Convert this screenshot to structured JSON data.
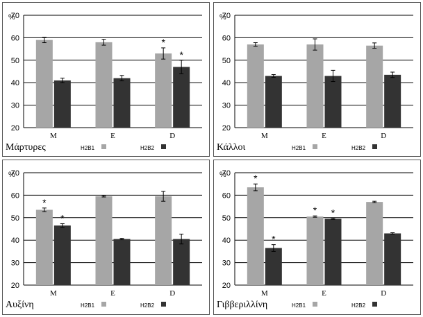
{
  "colors": {
    "h2b1": "#a6a6a6",
    "h2b2": "#333333",
    "grid": "#000000",
    "axis_text": "#000000"
  },
  "chart_data": [
    {
      "type": "bar",
      "title": "Μάρτυρες",
      "ylabel": "%",
      "categories": [
        "M",
        "E",
        "D"
      ],
      "ylim": [
        20,
        70
      ],
      "yticks": [
        "20",
        "30",
        "40",
        "50",
        "60",
        "70"
      ],
      "grid": true,
      "legend": "bottom",
      "series": [
        {
          "name": "H2B1",
          "values": [
            59,
            58,
            53
          ],
          "errors": [
            1.2,
            1.3,
            2.5
          ],
          "stars": [
            "",
            "",
            "*"
          ]
        },
        {
          "name": "H2B2",
          "values": [
            41,
            42,
            47
          ],
          "errors": [
            1.0,
            1.2,
            3.0
          ],
          "stars": [
            "",
            "",
            "*"
          ]
        }
      ]
    },
    {
      "type": "bar",
      "title": "Κάλλοι",
      "ylabel": "%",
      "categories": [
        "M",
        "E",
        "D"
      ],
      "ylim": [
        20,
        70
      ],
      "yticks": [
        "20",
        "30",
        "40",
        "50",
        "60",
        "70"
      ],
      "grid": true,
      "legend": "bottom",
      "series": [
        {
          "name": "H2B1",
          "values": [
            57,
            57,
            56.5
          ],
          "errors": [
            0.8,
            2.5,
            1.2
          ],
          "stars": [
            "",
            "",
            ""
          ]
        },
        {
          "name": "H2B2",
          "values": [
            43,
            43,
            43.5
          ],
          "errors": [
            0.6,
            2.5,
            1.2
          ],
          "stars": [
            "",
            "",
            ""
          ]
        }
      ]
    },
    {
      "type": "bar",
      "title": "Αυξίνη",
      "ylabel": "%",
      "categories": [
        "M",
        "E",
        "D"
      ],
      "ylim": [
        20,
        70
      ],
      "yticks": [
        "20",
        "30",
        "40",
        "50",
        "60",
        "70"
      ],
      "grid": true,
      "legend": "bottom",
      "series": [
        {
          "name": "H2B1",
          "values": [
            53.5,
            59.5,
            59.5
          ],
          "errors": [
            0.8,
            0.3,
            2.2
          ],
          "stars": [
            "*",
            "",
            ""
          ]
        },
        {
          "name": "H2B2",
          "values": [
            46.5,
            40.5,
            40.5
          ],
          "errors": [
            0.8,
            0.3,
            2.2
          ],
          "stars": [
            "*",
            "",
            ""
          ]
        }
      ]
    },
    {
      "type": "bar",
      "title": "Γιββεριλλίνη",
      "ylabel": "%",
      "categories": [
        "M",
        "E",
        "D"
      ],
      "ylim": [
        20,
        70
      ],
      "yticks": [
        "20",
        "30",
        "40",
        "50",
        "60",
        "70"
      ],
      "grid": true,
      "legend": "bottom",
      "series": [
        {
          "name": "H2B1",
          "values": [
            63.5,
            50.5,
            57
          ],
          "errors": [
            1.5,
            0.3,
            0.3
          ],
          "stars": [
            "*",
            "*",
            ""
          ]
        },
        {
          "name": "H2B2",
          "values": [
            36.5,
            49.5,
            43
          ],
          "errors": [
            1.5,
            0.3,
            0.3
          ],
          "stars": [
            "*",
            "*",
            ""
          ]
        }
      ]
    }
  ]
}
